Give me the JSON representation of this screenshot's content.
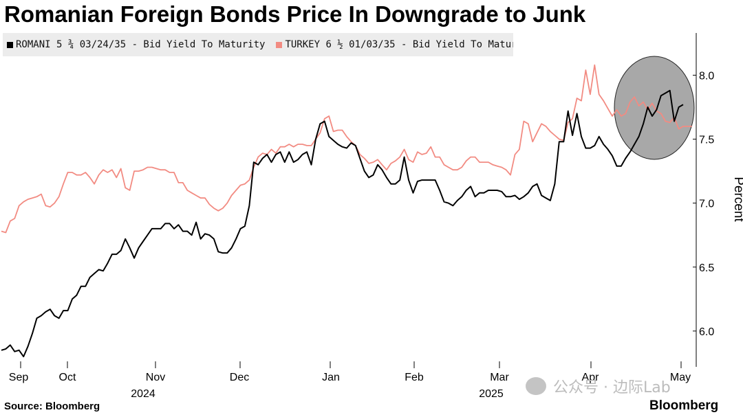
{
  "chart_data": {
    "type": "line",
    "title": "Romanian Foreign Bonds Price In Downgrade to Junk",
    "ylabel": "Percent",
    "ylim": [
      5.72,
      8.33
    ],
    "y_ticks": [
      6.0,
      6.5,
      7.0,
      7.5,
      8.0
    ],
    "y_tick_labels": [
      "6.0",
      "6.5",
      "7.0",
      "7.5",
      "8.0"
    ],
    "x_month_labels": [
      "Sep",
      "Oct",
      "Nov",
      "Dec",
      "Jan",
      "Feb",
      "Mar",
      "Apr",
      "May"
    ],
    "x_year_labels": [
      "2024",
      "2025"
    ],
    "grid": false,
    "legend_position": "top-left",
    "series": [
      {
        "name": "ROMANI 5 ¾ 03/24/35 - Bid Yield To Maturity",
        "color": "#000000",
        "values": [
          5.85,
          5.86,
          5.89,
          5.84,
          5.85,
          5.8,
          5.88,
          5.98,
          6.1,
          6.12,
          6.15,
          6.17,
          6.12,
          6.1,
          6.16,
          6.16,
          6.25,
          6.28,
          6.35,
          6.35,
          6.42,
          6.45,
          6.48,
          6.47,
          6.53,
          6.6,
          6.6,
          6.63,
          6.72,
          6.65,
          6.57,
          6.65,
          6.7,
          6.75,
          6.8,
          6.8,
          6.8,
          6.84,
          6.84,
          6.8,
          6.83,
          6.78,
          6.78,
          6.75,
          6.85,
          6.72,
          6.76,
          6.75,
          6.72,
          6.62,
          6.61,
          6.61,
          6.65,
          6.72,
          6.8,
          6.82,
          6.98,
          7.32,
          7.3,
          7.35,
          7.38,
          7.32,
          7.38,
          7.4,
          7.32,
          7.4,
          7.32,
          7.34,
          7.38,
          7.4,
          7.3,
          7.5,
          7.62,
          7.64,
          7.52,
          7.49,
          7.46,
          7.44,
          7.43,
          7.47,
          7.45,
          7.35,
          7.25,
          7.2,
          7.22,
          7.3,
          7.26,
          7.2,
          7.15,
          7.15,
          7.18,
          7.36,
          7.18,
          7.08,
          7.17,
          7.18,
          7.18,
          7.18,
          7.18,
          7.1,
          7.01,
          7.0,
          6.98,
          7.02,
          7.05,
          7.1,
          7.13,
          7.05,
          7.08,
          7.08,
          7.1,
          7.1,
          7.1,
          7.09,
          7.05,
          7.05,
          7.06,
          7.03,
          7.05,
          7.08,
          7.13,
          7.15,
          7.06,
          7.04,
          7.02,
          7.15,
          7.48,
          7.48,
          7.72,
          7.53,
          7.7,
          7.52,
          7.43,
          7.43,
          7.45,
          7.52,
          7.46,
          7.42,
          7.37,
          7.29,
          7.29,
          7.35,
          7.4,
          7.46,
          7.52,
          7.62,
          7.75,
          7.68,
          7.73,
          7.84,
          7.86,
          7.88,
          7.64,
          7.75,
          7.77
        ]
      },
      {
        "name": "TURKEY 6 ½ 01/03/35 - Bid Yield To Maturity",
        "color": "#f28b82",
        "values": [
          6.78,
          6.77,
          6.86,
          6.88,
          6.98,
          7.01,
          7.03,
          7.04,
          7.05,
          7.07,
          6.98,
          6.97,
          7.0,
          7.05,
          7.15,
          7.24,
          7.24,
          7.22,
          7.22,
          7.24,
          7.2,
          7.15,
          7.22,
          7.26,
          7.24,
          7.26,
          7.2,
          7.27,
          7.12,
          7.1,
          7.25,
          7.25,
          7.26,
          7.28,
          7.28,
          7.27,
          7.26,
          7.26,
          7.24,
          7.24,
          7.16,
          7.16,
          7.1,
          7.08,
          7.06,
          7.04,
          7.04,
          6.99,
          6.96,
          6.94,
          6.96,
          7.0,
          7.06,
          7.1,
          7.14,
          7.15,
          7.18,
          7.28,
          7.36,
          7.39,
          7.38,
          7.42,
          7.39,
          7.44,
          7.44,
          7.46,
          7.44,
          7.46,
          7.46,
          7.45,
          7.45,
          7.5,
          7.55,
          7.66,
          7.68,
          7.56,
          7.57,
          7.57,
          7.52,
          7.48,
          7.45,
          7.38,
          7.35,
          7.31,
          7.32,
          7.34,
          7.3,
          7.26,
          7.31,
          7.33,
          7.36,
          7.42,
          7.34,
          7.32,
          7.4,
          7.38,
          7.39,
          7.44,
          7.36,
          7.36,
          7.3,
          7.28,
          7.26,
          7.26,
          7.28,
          7.33,
          7.36,
          7.36,
          7.32,
          7.32,
          7.32,
          7.3,
          7.29,
          7.28,
          7.26,
          7.22,
          7.38,
          7.42,
          7.64,
          7.62,
          7.48,
          7.55,
          7.62,
          7.6,
          7.56,
          7.53,
          7.5,
          7.49,
          7.63,
          7.66,
          7.82,
          7.8,
          8.04,
          7.85,
          8.08,
          7.85,
          7.8,
          7.74,
          7.68,
          7.73,
          7.68,
          7.7,
          7.79,
          7.83,
          7.76,
          7.79,
          7.73,
          7.78,
          7.72,
          7.7,
          7.64,
          7.63,
          7.67,
          7.58,
          7.6,
          7.6,
          7.6
        ]
      }
    ],
    "annotation": "highlight ellipse around latest readings"
  },
  "legend": {
    "romani": "ROMANI 5 ¾ 03/24/35 - Bid Yield To Maturity",
    "turkey": "TURKEY 6 ½ 01/03/35 - Bid Yield To Maturity"
  },
  "footer": {
    "source": "Source: Bloomberg",
    "brand": "Bloomberg",
    "watermark": "公众号 · 边际Lab"
  }
}
